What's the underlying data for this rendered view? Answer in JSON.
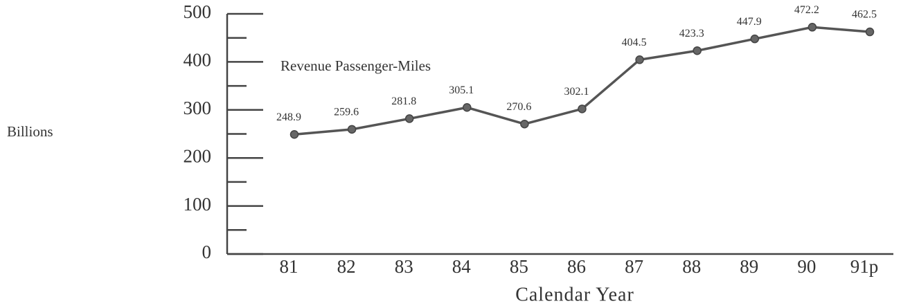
{
  "chart_data": {
    "type": "line",
    "y_label": "Billions",
    "x_label": "Calendar Year",
    "annotation": "Revenue Passenger-Miles",
    "categories": [
      "81",
      "82",
      "83",
      "84",
      "85",
      "86",
      "87",
      "88",
      "89",
      "90",
      "91p"
    ],
    "series": [
      {
        "name": "Revenue Passenger-Miles",
        "color": "#555555",
        "values": [
          248.9,
          259.6,
          281.8,
          305.1,
          270.6,
          302.1,
          404.5,
          423.3,
          447.9,
          472.2,
          462.5
        ]
      }
    ],
    "ylim": [
      0,
      500
    ],
    "yticks": [
      0,
      100,
      200,
      300,
      400,
      500
    ],
    "minor_yticks": [
      50,
      150,
      250,
      350,
      450
    ]
  }
}
